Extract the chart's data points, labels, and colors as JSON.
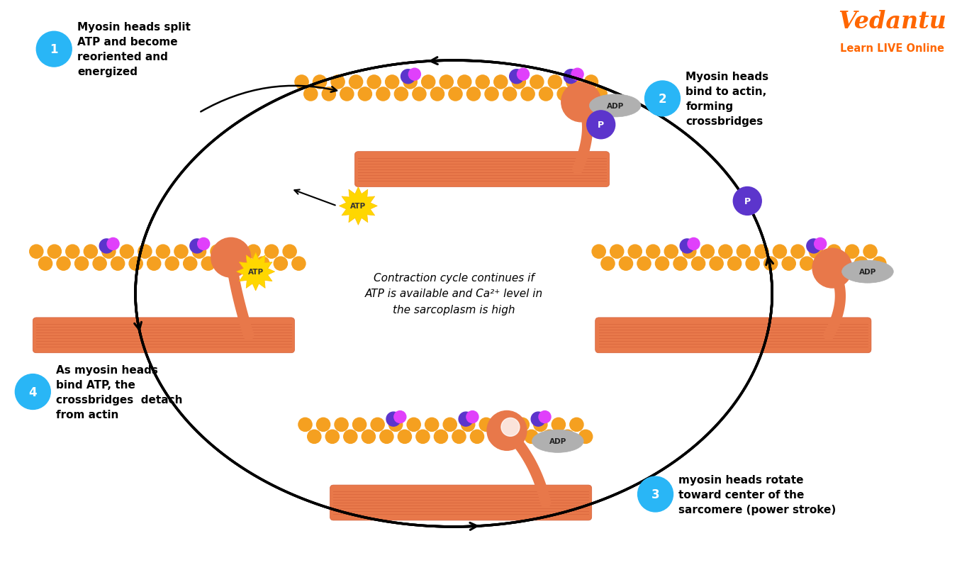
{
  "bg_color": "#ffffff",
  "text_color": "#000000",
  "actin_color": "#F5A020",
  "troponin_pink": "#E040FB",
  "troponin_purple": "#5C35CC",
  "myosin_head_color": "#E8784A",
  "thick_filament_color": "#E8784A",
  "thick_filament_stripe": "#D4603A",
  "adp_bg": "#aaaaaa",
  "atp_bg": "#FFD700",
  "arrow_color": "#000000",
  "circle_color": "#29B6F6",
  "vedantu_color": "#FF6600",
  "center_text": "Contraction cycle continues if\nATP is available and Ca²⁺ level in\nthe sarcoplasm is high",
  "label1": "Myosin heads split\nATP and become\nreoriented and\nenergized",
  "label2": "Myosin heads\nbind to actin,\nforming\ncrossbridges",
  "label3": "myosin heads rotate\ntoward center of the\nsarcomere (power stroke)",
  "label4": "As myosin heads\nbind ATP, the\ncrossbridges  detach\nfrom actin"
}
